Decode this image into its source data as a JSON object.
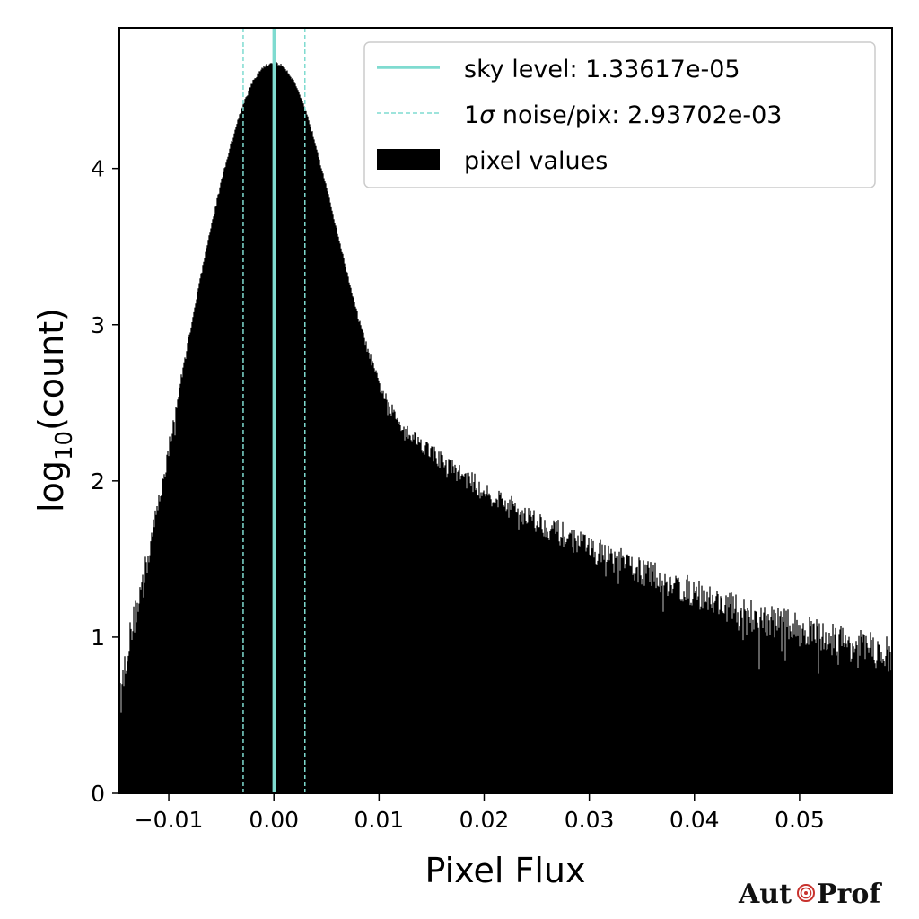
{
  "chart_data": {
    "type": "histogram",
    "xlabel": "Pixel Flux",
    "ylabel_base": "log",
    "ylabel_sub": "10",
    "ylabel_rest": "(count)",
    "xlim": [
      -0.0147,
      0.0588
    ],
    "ylim": [
      0,
      4.9
    ],
    "xticks": [
      -0.01,
      0.0,
      0.01,
      0.02,
      0.03,
      0.04,
      0.05
    ],
    "xtick_labels": [
      "−0.01",
      "0.00",
      "0.01",
      "0.02",
      "0.03",
      "0.04",
      "0.05"
    ],
    "yticks": [
      0,
      1,
      2,
      3,
      4
    ],
    "ytick_labels": [
      "0",
      "1",
      "2",
      "3",
      "4"
    ],
    "grid": false,
    "legend_position": "top-right",
    "sky_level": 1.33617e-05,
    "noise": 0.00293702,
    "line_color": "#7fdbd0",
    "bar_color": "#000000",
    "histogram_profile": {
      "x": [
        -0.0147,
        -0.014,
        -0.013,
        -0.012,
        -0.011,
        -0.01,
        -0.009,
        -0.008,
        -0.007,
        -0.006,
        -0.005,
        -0.004,
        -0.003,
        -0.002,
        -0.001,
        0.0,
        0.001,
        0.002,
        0.003,
        0.004,
        0.005,
        0.006,
        0.007,
        0.008,
        0.009,
        0.01,
        0.011,
        0.012,
        0.013,
        0.014,
        0.016,
        0.018,
        0.02,
        0.025,
        0.03,
        0.035,
        0.04,
        0.045,
        0.05,
        0.055,
        0.0588
      ],
      "y": [
        0.55,
        0.9,
        1.2,
        1.5,
        1.85,
        2.2,
        2.58,
        2.95,
        3.3,
        3.62,
        3.92,
        4.18,
        4.4,
        4.56,
        4.65,
        4.68,
        4.65,
        4.55,
        4.38,
        4.15,
        3.88,
        3.6,
        3.32,
        3.05,
        2.82,
        2.62,
        2.47,
        2.37,
        2.3,
        2.24,
        2.13,
        2.03,
        1.94,
        1.74,
        1.57,
        1.42,
        1.28,
        1.15,
        1.05,
        0.95,
        0.88
      ]
    },
    "legend": [
      {
        "type": "solid-line",
        "label": "sky level: 1.33617e-05"
      },
      {
        "type": "dashed-line",
        "label_prefix": "1",
        "label_sigma": "σ",
        "label_suffix": " noise/pix: 2.93702e-03"
      },
      {
        "type": "patch",
        "label": "pixel values"
      }
    ]
  },
  "logo": {
    "left": "Aut",
    "right": "Prof",
    "accent": "#c8322d"
  }
}
